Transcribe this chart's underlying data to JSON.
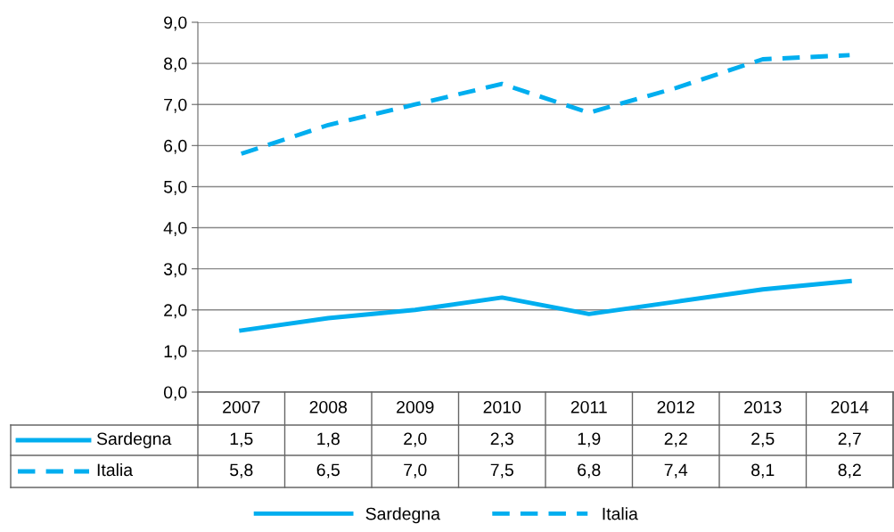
{
  "chart_data": {
    "type": "line",
    "categories": [
      "2007",
      "2008",
      "2009",
      "2010",
      "2011",
      "2012",
      "2013",
      "2014"
    ],
    "series": [
      {
        "name": "Sardegna",
        "color": "#00aeef",
        "line_style": "solid",
        "values": [
          1.5,
          1.8,
          2.0,
          2.3,
          1.9,
          2.2,
          2.5,
          2.7
        ],
        "value_labels": [
          "1,5",
          "1,8",
          "2,0",
          "2,3",
          "1,9",
          "2,2",
          "2,5",
          "2,7"
        ]
      },
      {
        "name": "Italia",
        "color": "#00aeef",
        "line_style": "dashed",
        "values": [
          5.8,
          6.5,
          7.0,
          7.5,
          6.8,
          7.4,
          8.1,
          8.2
        ],
        "value_labels": [
          "5,8",
          "6,5",
          "7,0",
          "7,5",
          "6,8",
          "7,4",
          "8,1",
          "8,2"
        ]
      }
    ],
    "ylim": [
      0,
      9
    ],
    "yticks": [
      {
        "value": 0,
        "label": "0,0"
      },
      {
        "value": 1,
        "label": "1,0"
      },
      {
        "value": 2,
        "label": "2,0"
      },
      {
        "value": 3,
        "label": "3,0"
      },
      {
        "value": 4,
        "label": "4,0"
      },
      {
        "value": 5,
        "label": "5,0"
      },
      {
        "value": 6,
        "label": "6,0"
      },
      {
        "value": 7,
        "label": "7,0"
      },
      {
        "value": 8,
        "label": "8,0"
      },
      {
        "value": 9,
        "label": "9,0"
      }
    ],
    "grid": "y",
    "legend": "bottom",
    "marker": "none"
  }
}
